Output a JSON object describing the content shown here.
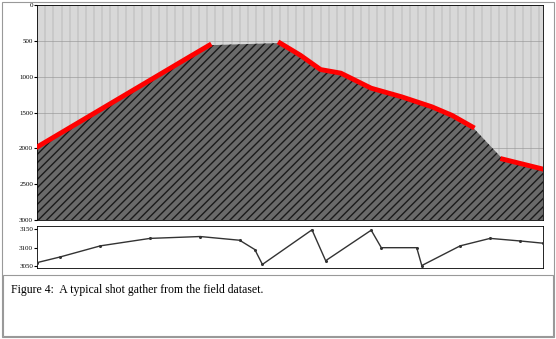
{
  "chart_data": [
    {
      "type": "line",
      "x": [
        0,
        5,
        10,
        15,
        20,
        25,
        30,
        34,
        41,
        48,
        52,
        56,
        60,
        66,
        72,
        78,
        82,
        86,
        89,
        92,
        96,
        100
      ],
      "values": [
        1980,
        1771,
        1562,
        1353,
        1144,
        935,
        726,
        560,
        null,
        530,
        700,
        900,
        950,
        1160,
        1280,
        1420,
        1540,
        1700,
        null,
        2150,
        2220,
        2290
      ],
      "color": "#ff0000",
      "line_style": "solid",
      "xlim": [
        0,
        100
      ],
      "ylim": [
        3000,
        0
      ],
      "yticks": [
        0,
        500,
        1000,
        1500,
        2000,
        2500,
        3000
      ],
      "grid": true,
      "tick_labels": "y"
    },
    {
      "type": "line",
      "x": [
        0,
        4.5,
        12.5,
        22.3,
        32.2,
        40,
        43,
        44.5,
        54.3,
        57,
        66,
        68,
        75,
        76,
        83.6,
        89.5,
        95.5,
        100
      ],
      "values": [
        3060,
        3075,
        3105,
        3125,
        3130,
        3120,
        3095,
        3055,
        3148,
        3065,
        3147,
        3100,
        3100,
        3052,
        3105,
        3125,
        3118,
        3112
      ],
      "color": "#333333",
      "marker": "o",
      "line_style": "solid",
      "xlim": [
        0,
        100
      ],
      "ylim": [
        3045,
        3158
      ],
      "yticks": [
        3050,
        3100,
        3150
      ],
      "grid": false,
      "tick_labels": "y"
    }
  ],
  "caption": "Figure 4:  A typical shot gather from the field dataset."
}
